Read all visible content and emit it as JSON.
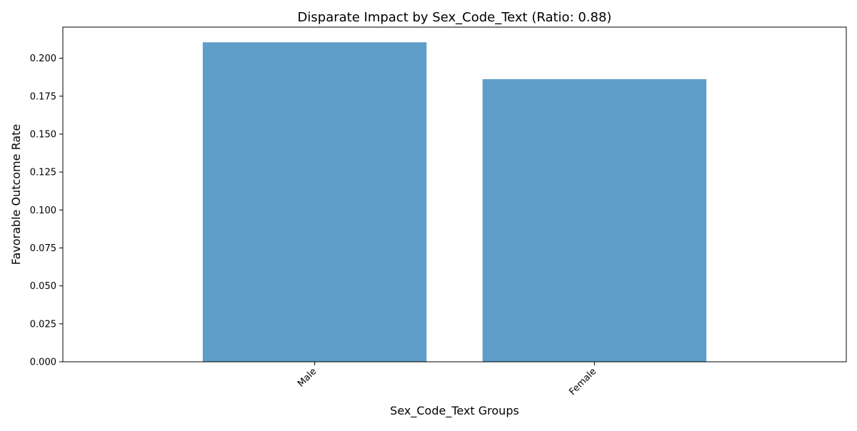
{
  "chart_data": {
    "type": "bar",
    "title": "Disparate Impact by Sex_Code_Text (Ratio: 0.88)",
    "xlabel": "Sex_Code_Text Groups",
    "ylabel": "Favorable Outcome Rate",
    "categories": [
      "Male",
      "Female"
    ],
    "values": [
      0.2105,
      0.1862
    ],
    "ylim": [
      0,
      0.2205
    ],
    "yticks": [
      0.0,
      0.025,
      0.05,
      0.075,
      0.1,
      0.125,
      0.15,
      0.175,
      0.2
    ],
    "ytick_labels": [
      "0.000",
      "0.025",
      "0.050",
      "0.075",
      "0.100",
      "0.125",
      "0.150",
      "0.175",
      "0.200"
    ],
    "grid": false,
    "legend": "none",
    "bar_color": "#5f9ec9"
  }
}
